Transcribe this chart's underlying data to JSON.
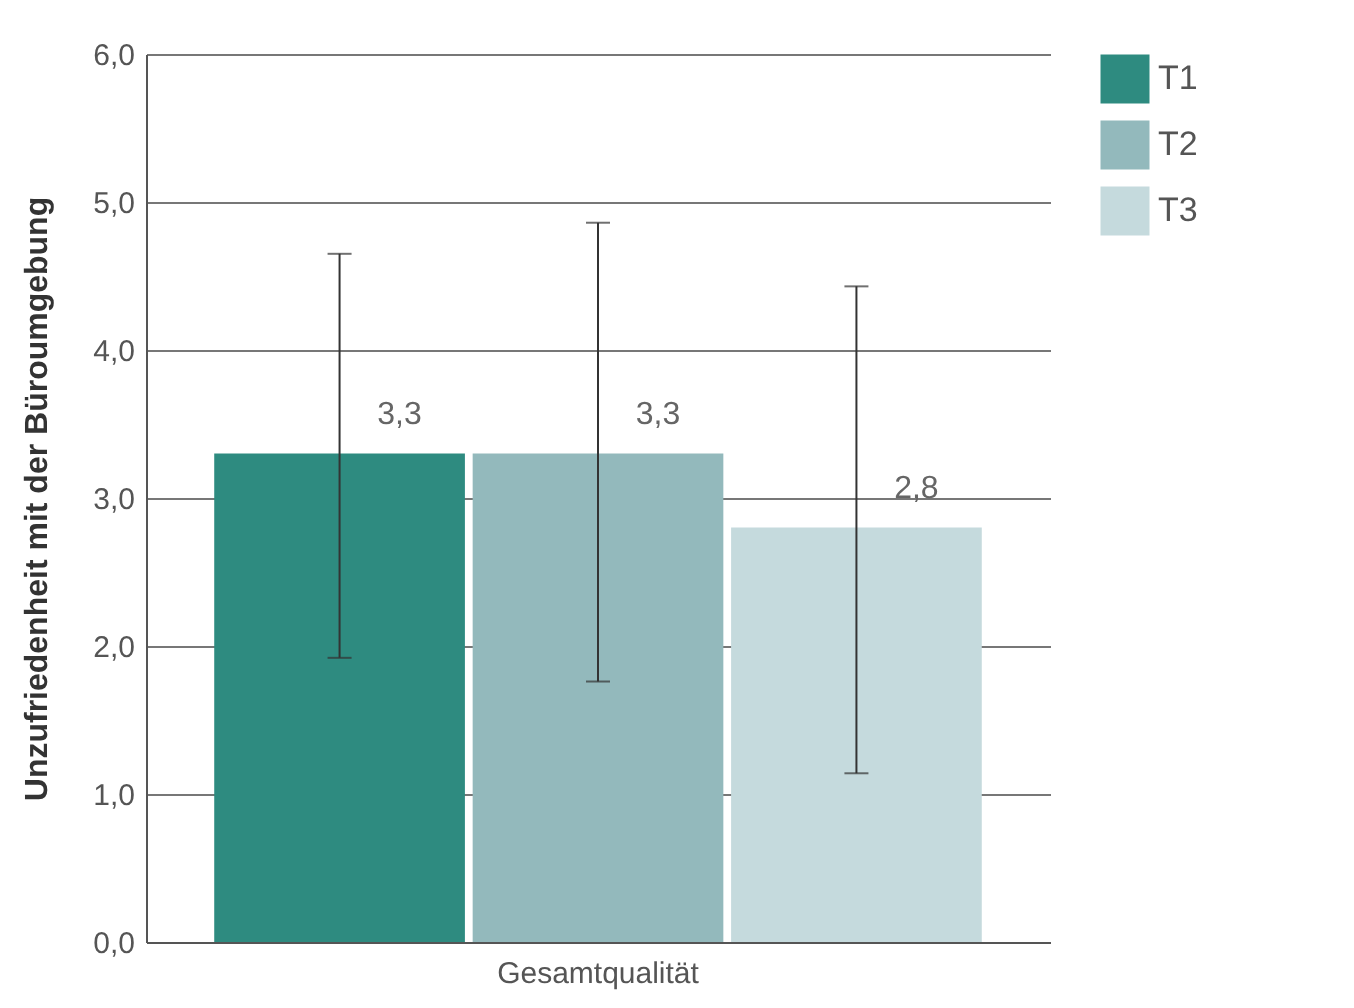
{
  "chart_data": {
    "type": "bar",
    "ylabel": "Unzufriedenheit mit der Büroumgebung",
    "categories": [
      "Gesamtqualität"
    ],
    "series": [
      {
        "name": "T1",
        "color": "#2e8b80",
        "values": [
          3.3
        ],
        "errors": [
          [
            1.92,
            4.65
          ]
        ],
        "value_labels": [
          "3,3"
        ]
      },
      {
        "name": "T2",
        "color": "#93b9bc",
        "values": [
          3.3
        ],
        "errors": [
          [
            1.76,
            4.86
          ]
        ],
        "value_labels": [
          "3,3"
        ]
      },
      {
        "name": "T3",
        "color": "#c5dadd",
        "values": [
          2.8
        ],
        "errors": [
          [
            1.14,
            4.43
          ]
        ],
        "value_labels": [
          "2,8"
        ]
      }
    ],
    "ylim": [
      0,
      6
    ],
    "yticks": [
      {
        "value": 0,
        "label": "0,0"
      },
      {
        "value": 1,
        "label": "1,0"
      },
      {
        "value": 2,
        "label": "2,0"
      },
      {
        "value": 3,
        "label": "3,0"
      },
      {
        "value": 4,
        "label": "4,0"
      },
      {
        "value": 5,
        "label": "5,0"
      },
      {
        "value": 6,
        "label": "6,0"
      }
    ],
    "grid": "y",
    "legend": "right"
  }
}
